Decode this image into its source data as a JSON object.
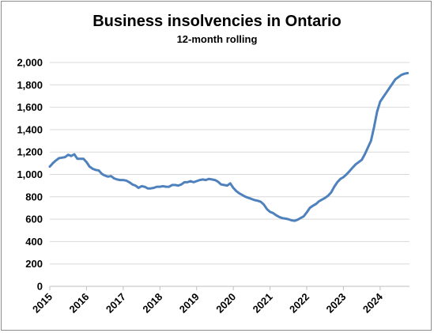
{
  "chart_data": {
    "type": "line",
    "title": "Business insolvencies in Ontario",
    "subtitle": "12-month rolling",
    "xlabel": "",
    "ylabel": "",
    "ylim": [
      0,
      2000
    ],
    "xlim": [
      2015,
      2024.8
    ],
    "y_ticks": [
      0,
      200,
      400,
      600,
      800,
      1000,
      1200,
      1400,
      1600,
      1800,
      2000
    ],
    "y_tick_labels": [
      "0",
      "200",
      "400",
      "600",
      "800",
      "1,000",
      "1,200",
      "1,400",
      "1,600",
      "1,800",
      "2,000"
    ],
    "x_ticks": [
      2015,
      2016,
      2017,
      2018,
      2019,
      2020,
      2021,
      2022,
      2023,
      2024
    ],
    "x_tick_labels": [
      "2015",
      "2016",
      "2017",
      "2018",
      "2019",
      "2020",
      "2021",
      "2022",
      "2023",
      "2024"
    ],
    "grid": "horizontal",
    "legend": "none",
    "series": [
      {
        "color": "#4f81bd",
        "x": [
          2015.0,
          2015.083,
          2015.167,
          2015.25,
          2015.333,
          2015.417,
          2015.5,
          2015.583,
          2015.667,
          2015.75,
          2015.833,
          2015.917,
          2016.0,
          2016.083,
          2016.167,
          2016.25,
          2016.333,
          2016.417,
          2016.5,
          2016.583,
          2016.667,
          2016.75,
          2016.833,
          2016.917,
          2017.0,
          2017.083,
          2017.167,
          2017.25,
          2017.333,
          2017.417,
          2017.5,
          2017.583,
          2017.667,
          2017.75,
          2017.833,
          2017.917,
          2018.0,
          2018.083,
          2018.167,
          2018.25,
          2018.333,
          2018.417,
          2018.5,
          2018.583,
          2018.667,
          2018.75,
          2018.833,
          2018.917,
          2019.0,
          2019.083,
          2019.167,
          2019.25,
          2019.333,
          2019.417,
          2019.5,
          2019.583,
          2019.667,
          2019.75,
          2019.833,
          2019.917,
          2020.0,
          2020.083,
          2020.167,
          2020.25,
          2020.333,
          2020.417,
          2020.5,
          2020.583,
          2020.667,
          2020.75,
          2020.833,
          2020.917,
          2021.0,
          2021.083,
          2021.167,
          2021.25,
          2021.333,
          2021.417,
          2021.5,
          2021.583,
          2021.667,
          2021.75,
          2021.833,
          2021.917,
          2022.0,
          2022.083,
          2022.167,
          2022.25,
          2022.333,
          2022.417,
          2022.5,
          2022.583,
          2022.667,
          2022.75,
          2022.833,
          2022.917,
          2023.0,
          2023.083,
          2023.167,
          2023.25,
          2023.333,
          2023.417,
          2023.5,
          2023.583,
          2023.667,
          2023.75,
          2023.833,
          2023.917,
          2024.0,
          2024.083,
          2024.167,
          2024.25,
          2024.333,
          2024.417,
          2024.5,
          2024.583,
          2024.667,
          2024.75
        ],
        "y": [
          1070,
          1100,
          1125,
          1145,
          1150,
          1155,
          1175,
          1165,
          1180,
          1140,
          1140,
          1140,
          1110,
          1070,
          1050,
          1040,
          1035,
          1005,
          990,
          980,
          985,
          965,
          955,
          950,
          950,
          945,
          930,
          910,
          900,
          880,
          895,
          890,
          875,
          875,
          880,
          890,
          890,
          895,
          890,
          890,
          905,
          905,
          900,
          910,
          930,
          930,
          940,
          930,
          940,
          950,
          955,
          950,
          960,
          955,
          950,
          935,
          910,
          905,
          900,
          920,
          880,
          850,
          830,
          815,
          800,
          790,
          780,
          770,
          765,
          755,
          730,
          690,
          665,
          655,
          635,
          620,
          610,
          605,
          600,
          590,
          585,
          595,
          610,
          625,
          660,
          700,
          720,
          735,
          760,
          775,
          790,
          810,
          840,
          890,
          930,
          960,
          975,
          1000,
          1030,
          1060,
          1090,
          1110,
          1130,
          1180,
          1240,
          1300,
          1420,
          1560,
          1650,
          1690,
          1730,
          1770,
          1810,
          1850,
          1870,
          1890,
          1900,
          1905
        ]
      }
    ]
  }
}
